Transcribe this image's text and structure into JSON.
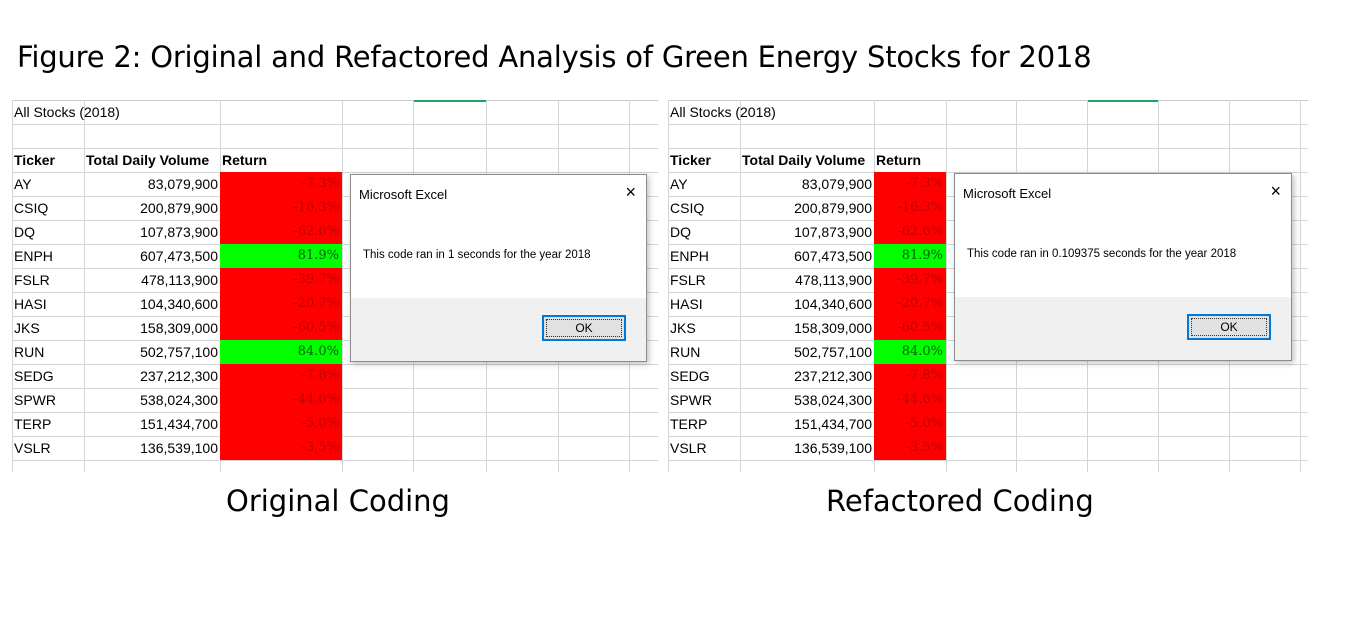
{
  "figure_title": "Figure 2: Original and Refactored Analysis of Green Energy Stocks for 2018",
  "sheet": {
    "title": "All Stocks (2018)",
    "headers": [
      "Ticker",
      "Total Daily Volume",
      "Return"
    ],
    "rows": [
      {
        "ticker": "AY",
        "volume": "83,079,900",
        "return": "-7.3%",
        "status": "negative"
      },
      {
        "ticker": "CSIQ",
        "volume": "200,879,900",
        "return": "-16.3%",
        "status": "negative"
      },
      {
        "ticker": "DQ",
        "volume": "107,873,900",
        "return": "-62.6%",
        "status": "negative"
      },
      {
        "ticker": "ENPH",
        "volume": "607,473,500",
        "return": "81.9%",
        "status": "positive"
      },
      {
        "ticker": "FSLR",
        "volume": "478,113,900",
        "return": "-39.7%",
        "status": "negative"
      },
      {
        "ticker": "HASI",
        "volume": "104,340,600",
        "return": "-20.7%",
        "status": "negative"
      },
      {
        "ticker": "JKS",
        "volume": "158,309,000",
        "return": "-60.5%",
        "status": "negative"
      },
      {
        "ticker": "RUN",
        "volume": "502,757,100",
        "return": "84.0%",
        "status": "positive"
      },
      {
        "ticker": "SEDG",
        "volume": "237,212,300",
        "return": "-7.8%",
        "status": "negative"
      },
      {
        "ticker": "SPWR",
        "volume": "538,024,300",
        "return": "-44.6%",
        "status": "negative"
      },
      {
        "ticker": "TERP",
        "volume": "151,434,700",
        "return": "-5.0%",
        "status": "negative"
      },
      {
        "ticker": "VSLR",
        "volume": "136,539,100",
        "return": "-3.5%",
        "status": "negative"
      }
    ]
  },
  "panels": [
    {
      "caption": "Original Coding",
      "dialog": {
        "title": "Microsoft Excel",
        "close_icon": "×",
        "message": "This code ran in 1 seconds for the year 2018",
        "ok_label": "OK"
      }
    },
    {
      "caption": "Refactored Coding",
      "dialog": {
        "title": "Microsoft Excel",
        "close_icon": "×",
        "message": "This code ran in 0.109375 seconds for the year 2018",
        "ok_label": "OK"
      }
    }
  ],
  "colors": {
    "negative_fill": "#ff0000",
    "positive_fill": "#00ff00",
    "grid_line": "#d4d4d4",
    "selection_accent": "#21a366",
    "dialog_button_border": "#0078d7"
  }
}
